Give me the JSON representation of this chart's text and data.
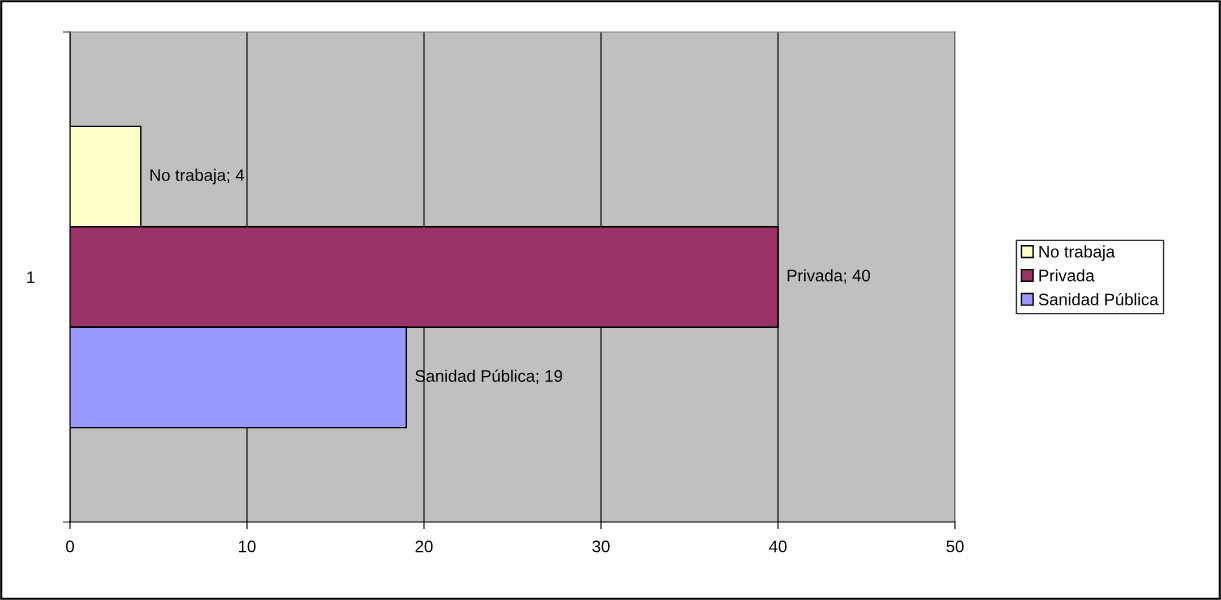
{
  "chart_data": {
    "type": "bar",
    "orientation": "horizontal",
    "categories": [
      "1"
    ],
    "series": [
      {
        "name": "No trabaja",
        "color": "#ffffcc",
        "values": [
          4
        ],
        "value_labels": [
          "No trabaja; 4"
        ]
      },
      {
        "name": "Privada",
        "color": "#993366",
        "values": [
          40
        ],
        "value_labels": [
          "Privada; 40"
        ]
      },
      {
        "name": "Sanidad Pública",
        "color": "#9999ff",
        "values": [
          19
        ],
        "value_labels": [
          "Sanidad Pública; 19"
        ]
      }
    ],
    "xlim": [
      0,
      50
    ],
    "xticks": [
      0,
      10,
      20,
      30,
      40,
      50
    ],
    "grid": "x",
    "legend": "right"
  }
}
